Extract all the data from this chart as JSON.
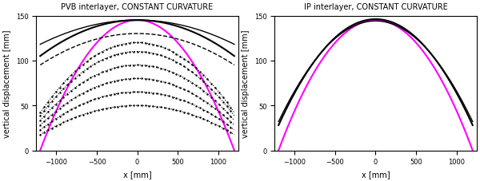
{
  "title_left": "PVB interlayer, CONSTANT CURVATURE",
  "title_right": "IP interlayer, CONSTANT CURVATURE",
  "xlabel": "x [mm]",
  "ylabel": "vertical displacement [mm]",
  "xlim": [
    -1250,
    1250
  ],
  "ylim": [
    0,
    150
  ],
  "xticks": [
    -1000,
    -500,
    0,
    500,
    1000
  ],
  "yticks": [
    0,
    50,
    100,
    150
  ],
  "x_half_span": 1200,
  "magenta_color": "#ff00ff",
  "black_color": "#000000",
  "magenta_peak": 145,
  "pvb_black_outer_peak": 145,
  "pvb_black_outer_ends": 105,
  "pvb_black_inner_peak": 145,
  "pvb_black_inner_ends": 118,
  "pvb_dashed_peak": 130,
  "pvb_dashed_ends": 95,
  "pvb_dotted_peaks": [
    120,
    110,
    95,
    80,
    65,
    50
  ],
  "ip_black_outer_peak": 146,
  "ip_black_outer_ends": 28,
  "ip_black_inner_peak": 144,
  "ip_black_inner_ends": 32
}
